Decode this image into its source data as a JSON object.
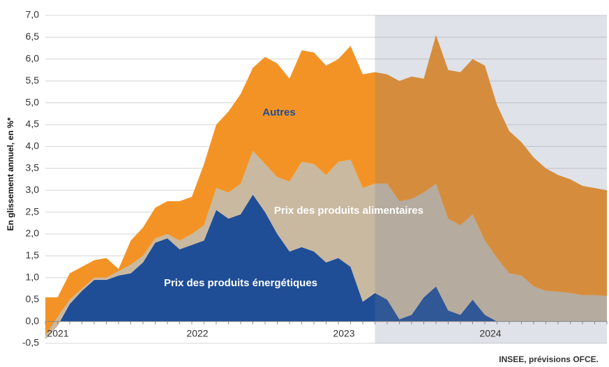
{
  "chart_data": {
    "type": "stacked_area",
    "y_label": "En glissement annuel, en %*",
    "source": "INSEE, prévisions OFCE.",
    "categories": [
      "2021",
      null,
      null,
      null,
      null,
      null,
      null,
      null,
      null,
      null,
      null,
      null,
      "2022",
      null,
      null,
      null,
      null,
      null,
      null,
      null,
      null,
      null,
      null,
      null,
      "2023",
      null,
      null,
      null,
      null,
      null,
      null,
      null,
      null,
      null,
      null,
      null,
      "2024",
      null,
      null,
      null,
      null,
      null,
      null,
      null,
      null,
      null,
      null
    ],
    "forecast_start_index": 27,
    "series": [
      {
        "name": "Prix des produits énergétiques",
        "color": "#1f4e96",
        "values": [
          -0.4,
          -0.1,
          0.4,
          0.7,
          0.95,
          0.95,
          1.05,
          1.1,
          1.35,
          1.8,
          1.9,
          1.65,
          1.75,
          1.85,
          2.55,
          2.35,
          2.45,
          2.9,
          2.5,
          2.0,
          1.6,
          1.7,
          1.6,
          1.35,
          1.45,
          1.25,
          0.45,
          0.65,
          0.5,
          0.05,
          0.15,
          0.55,
          0.8,
          0.25,
          0.15,
          0.5,
          0.15,
          0,
          0,
          0,
          0,
          0,
          0,
          0,
          0,
          0,
          0
        ]
      },
      {
        "name": "Prix des produits alimentaires",
        "color": "#c9b9a0",
        "values": [
          0.1,
          0.2,
          0.1,
          0.05,
          0.05,
          0.05,
          0.1,
          0.2,
          0.15,
          0.1,
          0.1,
          0.2,
          0.25,
          0.35,
          0.5,
          0.6,
          0.7,
          1.0,
          1.1,
          1.3,
          1.6,
          1.95,
          2.0,
          2.0,
          2.2,
          2.45,
          2.6,
          2.5,
          2.65,
          2.7,
          2.65,
          2.4,
          2.35,
          2.1,
          2.05,
          1.95,
          1.7,
          1.45,
          1.1,
          1.05,
          0.8,
          0.7,
          0.68,
          0.65,
          0.6,
          0.6,
          0.58
        ]
      },
      {
        "name": "Autres",
        "color": "#f39325",
        "values": [
          0.85,
          0.45,
          0.6,
          0.5,
          0.4,
          0.45,
          0.05,
          0.55,
          0.65,
          0.7,
          0.75,
          0.9,
          0.85,
          1.4,
          1.45,
          1.85,
          2.05,
          1.9,
          2.45,
          2.6,
          2.35,
          2.55,
          2.55,
          2.5,
          2.35,
          2.6,
          2.6,
          2.55,
          2.5,
          2.75,
          2.8,
          2.6,
          3.4,
          3.4,
          3.5,
          3.55,
          4.0,
          3.5,
          3.25,
          3.05,
          2.95,
          2.8,
          2.67,
          2.6,
          2.5,
          2.45,
          2.42
        ]
      }
    ],
    "ylim": [
      -0.5,
      7.0
    ],
    "yticks": [
      {
        "value": -0.5,
        "label": "-0,5"
      },
      {
        "value": 0,
        "label": "0,0"
      },
      {
        "value": 0.5,
        "label": "0,5"
      },
      {
        "value": 1,
        "label": "1,0"
      },
      {
        "value": 1.5,
        "label": "1,5"
      },
      {
        "value": 2,
        "label": "2,0"
      },
      {
        "value": 2.5,
        "label": "2,5"
      },
      {
        "value": 3,
        "label": "3,0"
      },
      {
        "value": 3.5,
        "label": "3,5"
      },
      {
        "value": 4,
        "label": "4,0"
      },
      {
        "value": 4.5,
        "label": "4,5"
      },
      {
        "value": 5,
        "label": "5,0"
      },
      {
        "value": 5.5,
        "label": "5,5"
      },
      {
        "value": 6,
        "label": "6,0"
      },
      {
        "value": 6.5,
        "label": "6,5"
      },
      {
        "value": 7,
        "label": "7,0"
      }
    ],
    "grid": true
  }
}
